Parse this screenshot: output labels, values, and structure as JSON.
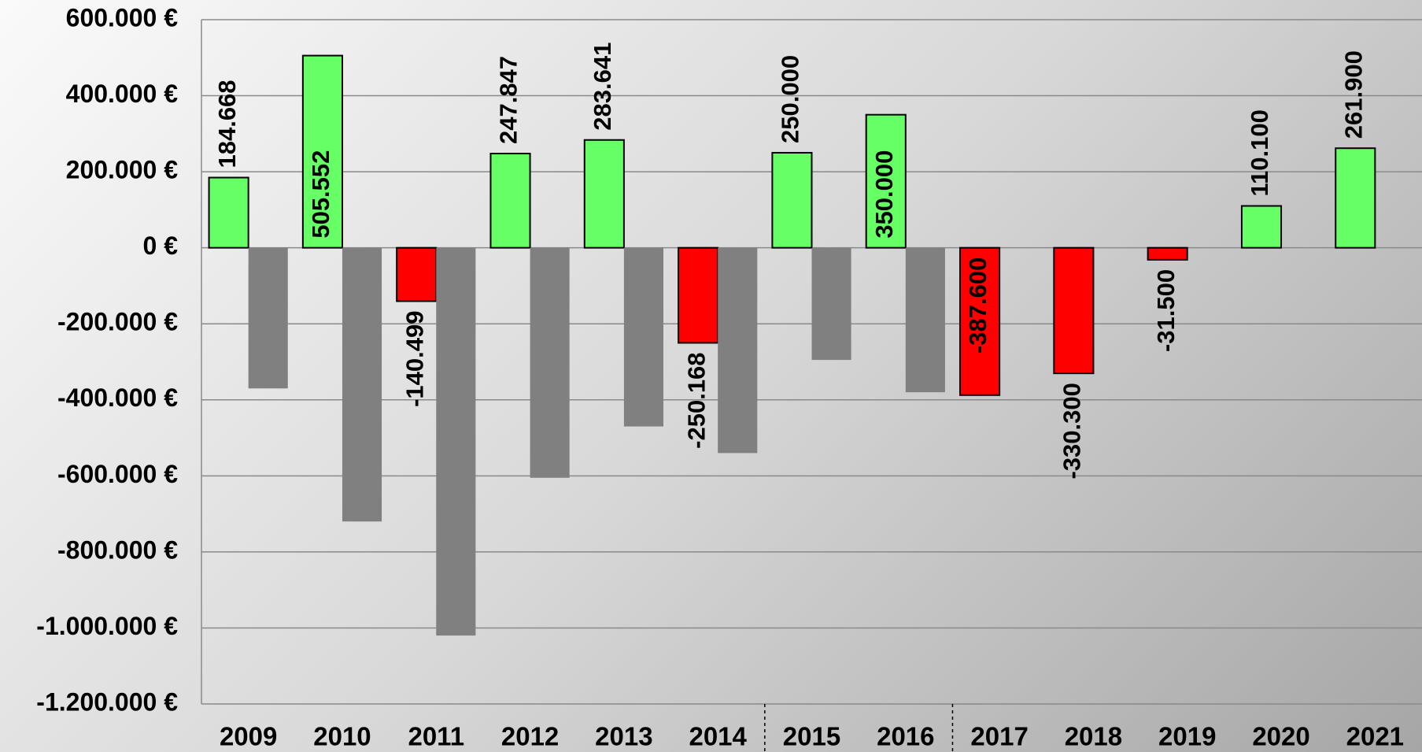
{
  "chart_data": {
    "type": "bar",
    "categories": [
      "2009",
      "2010",
      "2011",
      "2012",
      "2013",
      "2014",
      "2015",
      "2016",
      "2017",
      "2018",
      "2019",
      "2020",
      "2021"
    ],
    "series": [
      {
        "values": [
          184668,
          505552,
          -140499,
          247847,
          283641,
          -250168,
          250000,
          350000,
          -387600,
          -330300,
          -31500,
          110100,
          261900
        ],
        "value_labels": [
          "184.668",
          "505.552",
          "-140.499",
          "247.847",
          "283.641",
          "-250.168",
          "250.000",
          "350.000",
          "-387.600",
          "-330.300",
          "-31.500",
          "110.100",
          "261.900"
        ],
        "colors": [
          "#66ff66",
          "#66ff66",
          "#ff0000",
          "#66ff66",
          "#66ff66",
          "#ff0000",
          "#66ff66",
          "#66ff66",
          "#ff0000",
          "#ff0000",
          "#ff0000",
          "#66ff66",
          "#66ff66"
        ]
      },
      {
        "color": "#808080",
        "values": [
          -370000,
          -720000,
          -1020000,
          -605000,
          -470000,
          -540000,
          -295000,
          -380000,
          null,
          null,
          null,
          null,
          null
        ]
      }
    ],
    "ylim": [
      -1200000,
      600000
    ],
    "yticks": [
      {
        "value": -1200000,
        "label": "-1.200.000 €"
      },
      {
        "value": -1000000,
        "label": "-1.000.000 €"
      },
      {
        "value": -800000,
        "label": "-800.000 €"
      },
      {
        "value": -600000,
        "label": "-600.000 €"
      },
      {
        "value": -400000,
        "label": "-400.000 €"
      },
      {
        "value": -200000,
        "label": "-200.000 €"
      },
      {
        "value": 0,
        "label": "0 €"
      },
      {
        "value": 200000,
        "label": "200.000 €"
      },
      {
        "value": 400000,
        "label": "400.000 €"
      },
      {
        "value": 600000,
        "label": "600.000 €"
      }
    ],
    "grid": true
  }
}
